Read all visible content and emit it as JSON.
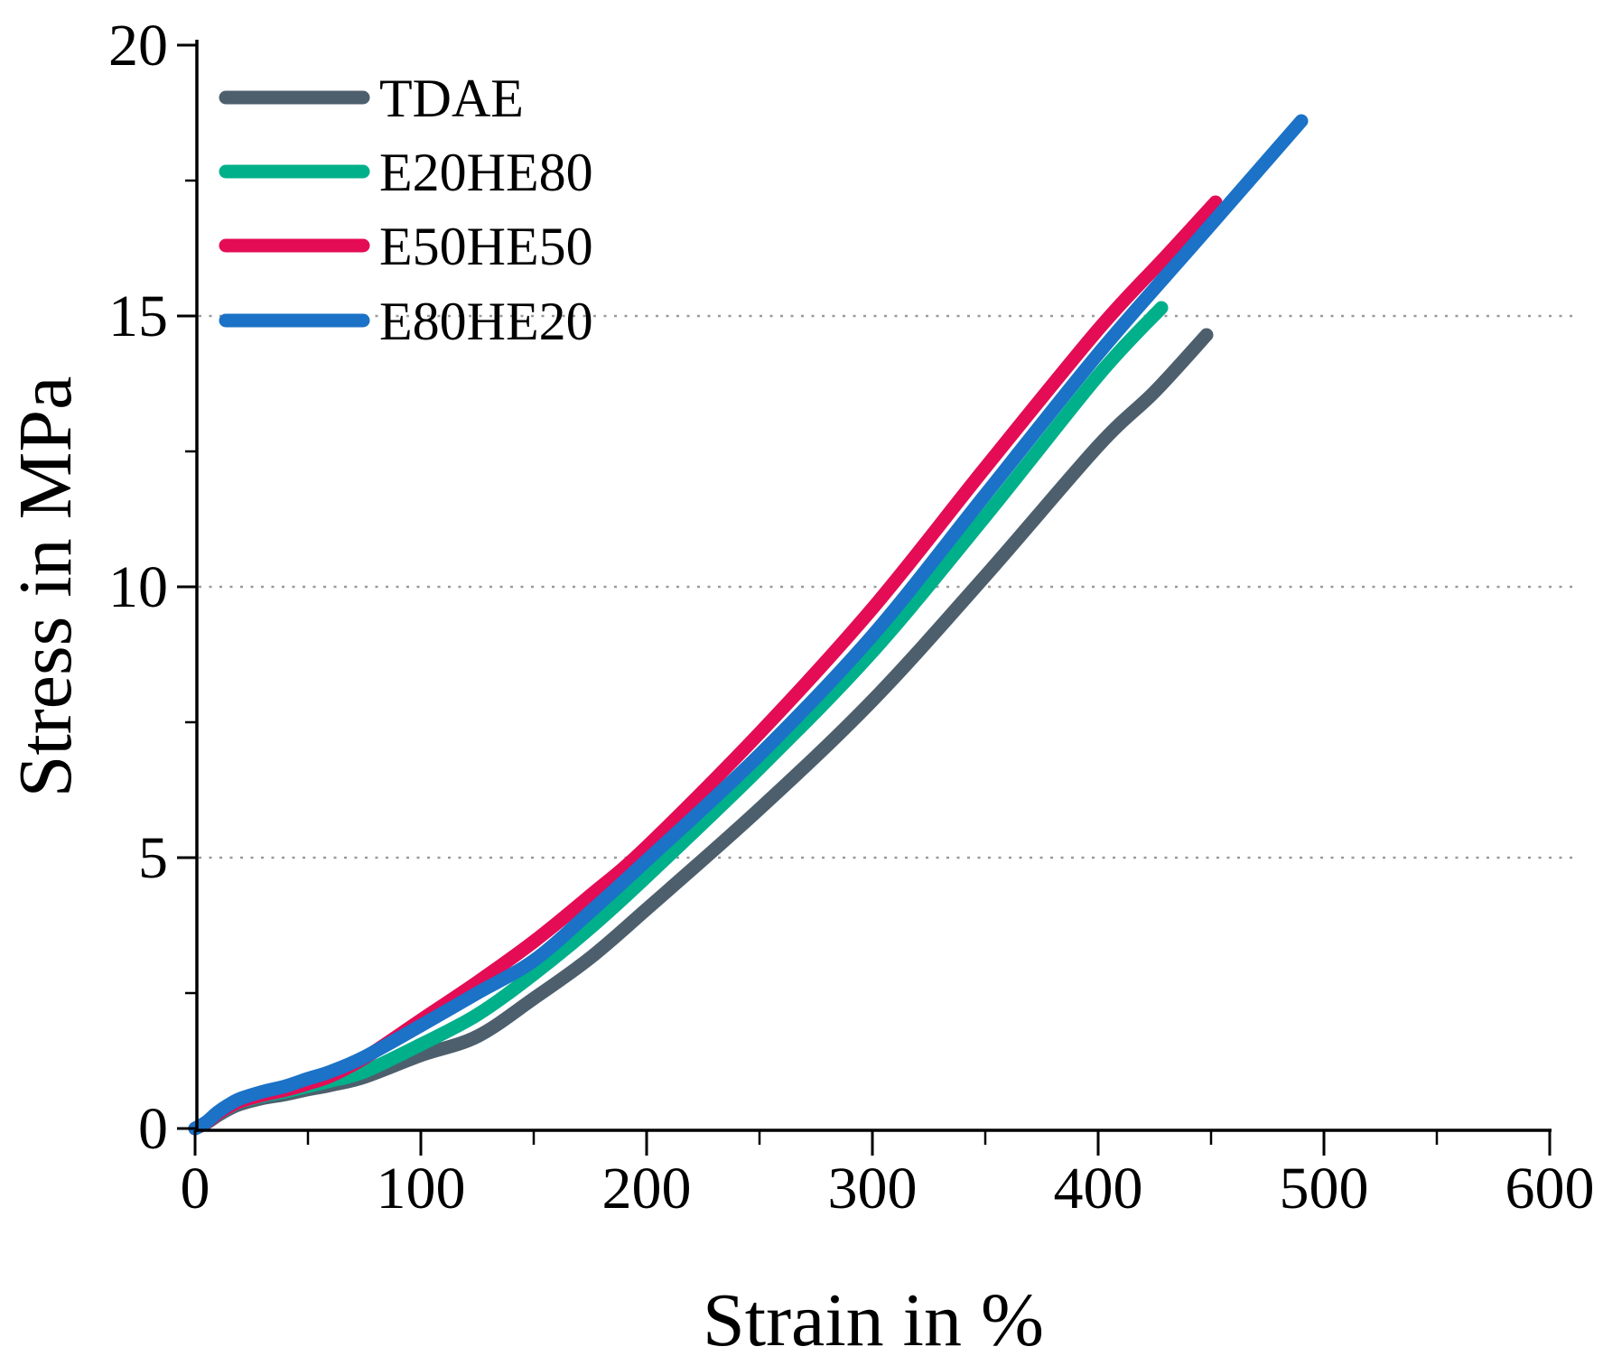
{
  "chart_data": {
    "type": "line",
    "title": "",
    "xlabel": "Strain in %",
    "ylabel": "Stress in MPa",
    "xlim": [
      0,
      600
    ],
    "ylim": [
      0,
      20
    ],
    "x_major_ticks": [
      0,
      100,
      200,
      300,
      400,
      500,
      600
    ],
    "x_minor_ticks": [
      50,
      150,
      250,
      350,
      450,
      550
    ],
    "y_major_ticks": [
      0,
      5,
      10,
      15,
      20
    ],
    "y_minor_ticks": [
      2.5,
      7.5,
      12.5,
      17.5
    ],
    "gridlines_y": [
      5,
      10,
      15
    ],
    "grid_style": "dotted",
    "legend_position": "top-left",
    "axis_color": "#000000",
    "grid_color": "#9a9a9a",
    "series": [
      {
        "name": "TDAE",
        "color": "#4d5f6d",
        "points": [
          [
            0,
            0
          ],
          [
            5,
            0.1
          ],
          [
            10,
            0.24
          ],
          [
            15,
            0.36
          ],
          [
            20,
            0.45
          ],
          [
            30,
            0.56
          ],
          [
            40,
            0.63
          ],
          [
            50,
            0.72
          ],
          [
            60,
            0.8
          ],
          [
            75,
            0.95
          ],
          [
            100,
            1.35
          ],
          [
            125,
            1.7
          ],
          [
            150,
            2.4
          ],
          [
            175,
            3.15
          ],
          [
            200,
            4.05
          ],
          [
            250,
            5.9
          ],
          [
            300,
            7.9
          ],
          [
            350,
            10.2
          ],
          [
            400,
            12.6
          ],
          [
            425,
            13.6
          ],
          [
            448,
            14.65
          ]
        ]
      },
      {
        "name": "E20HE80",
        "color": "#00b08a",
        "points": [
          [
            0,
            0
          ],
          [
            5,
            0.11
          ],
          [
            10,
            0.26
          ],
          [
            15,
            0.39
          ],
          [
            20,
            0.49
          ],
          [
            30,
            0.6
          ],
          [
            40,
            0.68
          ],
          [
            50,
            0.78
          ],
          [
            60,
            0.88
          ],
          [
            75,
            1.05
          ],
          [
            100,
            1.55
          ],
          [
            125,
            2.1
          ],
          [
            150,
            2.85
          ],
          [
            175,
            3.7
          ],
          [
            200,
            4.65
          ],
          [
            250,
            6.65
          ],
          [
            300,
            8.8
          ],
          [
            350,
            11.3
          ],
          [
            400,
            13.9
          ],
          [
            428,
            15.15
          ]
        ]
      },
      {
        "name": "E50HE50",
        "color": "#e40c55",
        "points": [
          [
            0,
            0
          ],
          [
            5,
            0.11
          ],
          [
            10,
            0.27
          ],
          [
            15,
            0.4
          ],
          [
            20,
            0.5
          ],
          [
            30,
            0.62
          ],
          [
            40,
            0.71
          ],
          [
            50,
            0.83
          ],
          [
            60,
            0.97
          ],
          [
            75,
            1.3
          ],
          [
            100,
            2.0
          ],
          [
            125,
            2.7
          ],
          [
            150,
            3.45
          ],
          [
            175,
            4.3
          ],
          [
            200,
            5.2
          ],
          [
            250,
            7.3
          ],
          [
            300,
            9.6
          ],
          [
            350,
            12.2
          ],
          [
            400,
            14.75
          ],
          [
            430,
            16.1
          ],
          [
            452,
            17.1
          ]
        ]
      },
      {
        "name": "E80HE20",
        "color": "#1b72c7",
        "points": [
          [
            0,
            0
          ],
          [
            5,
            0.12
          ],
          [
            10,
            0.3
          ],
          [
            15,
            0.44
          ],
          [
            20,
            0.55
          ],
          [
            30,
            0.68
          ],
          [
            40,
            0.78
          ],
          [
            50,
            0.92
          ],
          [
            60,
            1.05
          ],
          [
            75,
            1.32
          ],
          [
            100,
            1.9
          ],
          [
            125,
            2.5
          ],
          [
            150,
            3.1
          ],
          [
            175,
            4.0
          ],
          [
            200,
            4.95
          ],
          [
            250,
            6.9
          ],
          [
            300,
            9.1
          ],
          [
            350,
            11.7
          ],
          [
            400,
            14.3
          ],
          [
            445,
            16.45
          ],
          [
            490,
            18.6
          ]
        ]
      }
    ]
  },
  "legend": {
    "items": [
      {
        "label": "TDAE",
        "color": "#4d5f6d"
      },
      {
        "label": "E20HE80",
        "color": "#00b08a"
      },
      {
        "label": "E50HE50",
        "color": "#e40c55"
      },
      {
        "label": "E80HE20",
        "color": "#1b72c7"
      }
    ]
  },
  "axes": {
    "x_title": "Strain in %",
    "y_title": "Stress in MPa"
  }
}
